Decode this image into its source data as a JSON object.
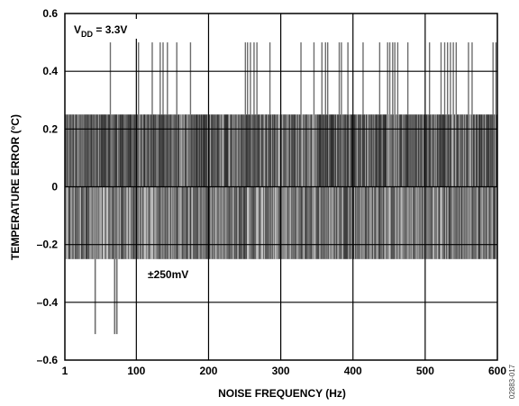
{
  "chart_data": {
    "type": "line",
    "title": "",
    "xlabel": "NOISE FREQUENCY (Hz)",
    "ylabel": "TEMPERATURE ERROR (°C)",
    "xlim": [
      1,
      600
    ],
    "ylim": [
      -0.6,
      0.6
    ],
    "x_ticks": [
      {
        "value": 1,
        "label": "1"
      },
      {
        "value": 100,
        "label": "100"
      },
      {
        "value": 200,
        "label": "200"
      },
      {
        "value": 300,
        "label": "300"
      },
      {
        "value": 400,
        "label": "400"
      },
      {
        "value": 500,
        "label": "500"
      },
      {
        "value": 600,
        "label": "600"
      }
    ],
    "y_ticks": [
      {
        "value": 0.6,
        "label": "0.6"
      },
      {
        "value": 0.4,
        "label": "0.4"
      },
      {
        "value": 0.2,
        "label": "0.2"
      },
      {
        "value": 0,
        "label": "0"
      },
      {
        "value": -0.2,
        "label": "–0.2"
      },
      {
        "value": -0.4,
        "label": "–0.4"
      },
      {
        "value": -0.6,
        "label": "–0.6"
      }
    ],
    "grid": true,
    "annotations": {
      "vdd": {
        "main": "V",
        "sub": "DD",
        "rest": " = 3.3V"
      },
      "noise": "±250mV"
    },
    "band": {
      "x_start": 1,
      "x_end": 600,
      "y_min": -0.25,
      "y_max": 0.25
    },
    "spikes_up": [
      {
        "x": 64,
        "y": 0.5
      },
      {
        "x": 103,
        "y": 0.5
      },
      {
        "x": 122,
        "y": 0.5
      },
      {
        "x": 133,
        "y": 0.5
      },
      {
        "x": 137,
        "y": 0.5
      },
      {
        "x": 143,
        "y": 0.5
      },
      {
        "x": 156,
        "y": 0.5
      },
      {
        "x": 175,
        "y": 0.5
      },
      {
        "x": 251,
        "y": 0.5
      },
      {
        "x": 254,
        "y": 0.5
      },
      {
        "x": 258,
        "y": 0.5
      },
      {
        "x": 263,
        "y": 0.5
      },
      {
        "x": 267,
        "y": 0.5
      },
      {
        "x": 285,
        "y": 0.5
      },
      {
        "x": 328,
        "y": 0.5
      },
      {
        "x": 346,
        "y": 0.5
      },
      {
        "x": 357,
        "y": 0.5
      },
      {
        "x": 362,
        "y": 0.5
      },
      {
        "x": 365,
        "y": 0.5
      },
      {
        "x": 381,
        "y": 0.5
      },
      {
        "x": 384,
        "y": 0.5
      },
      {
        "x": 393,
        "y": 0.5
      },
      {
        "x": 414,
        "y": 0.5
      },
      {
        "x": 437,
        "y": 0.5
      },
      {
        "x": 448,
        "y": 0.5
      },
      {
        "x": 451,
        "y": 0.5
      },
      {
        "x": 455,
        "y": 0.5
      },
      {
        "x": 458,
        "y": 0.5
      },
      {
        "x": 462,
        "y": 0.5
      },
      {
        "x": 476,
        "y": 0.5
      },
      {
        "x": 506,
        "y": 0.5
      },
      {
        "x": 522,
        "y": 0.5
      },
      {
        "x": 527,
        "y": 0.5
      },
      {
        "x": 531,
        "y": 0.5
      },
      {
        "x": 535,
        "y": 0.5
      },
      {
        "x": 539,
        "y": 0.5
      },
      {
        "x": 543,
        "y": 0.5
      },
      {
        "x": 560,
        "y": 0.5
      },
      {
        "x": 565,
        "y": 0.5
      },
      {
        "x": 594,
        "y": 0.5
      },
      {
        "x": 598,
        "y": 0.5
      }
    ],
    "spikes_down": [
      {
        "x": 43,
        "y": -0.51
      },
      {
        "x": 70,
        "y": -0.51
      },
      {
        "x": 73,
        "y": -0.51
      }
    ]
  },
  "figure_id": "02883-017"
}
